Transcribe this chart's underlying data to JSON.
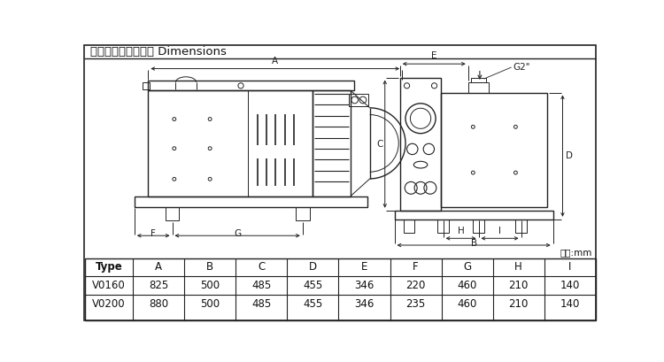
{
  "title": "外型尺寸及安裝尺寸 Dimensions",
  "unit_label": "單位:mm",
  "table_headers": [
    "Type",
    "A",
    "B",
    "C",
    "D",
    "E",
    "F",
    "G",
    "H",
    "I"
  ],
  "table_rows": [
    [
      "V0160",
      "825",
      "500",
      "485",
      "455",
      "346",
      "220",
      "460",
      "210",
      "140"
    ],
    [
      "V0200",
      "880",
      "500",
      "485",
      "455",
      "346",
      "235",
      "460",
      "210",
      "140"
    ]
  ],
  "bg_color": "#ffffff",
  "border_color": "#222222",
  "lc": "#222222",
  "title_fontsize": 9.5,
  "table_fontsize": 8.5,
  "dim_fontsize": 7.5
}
